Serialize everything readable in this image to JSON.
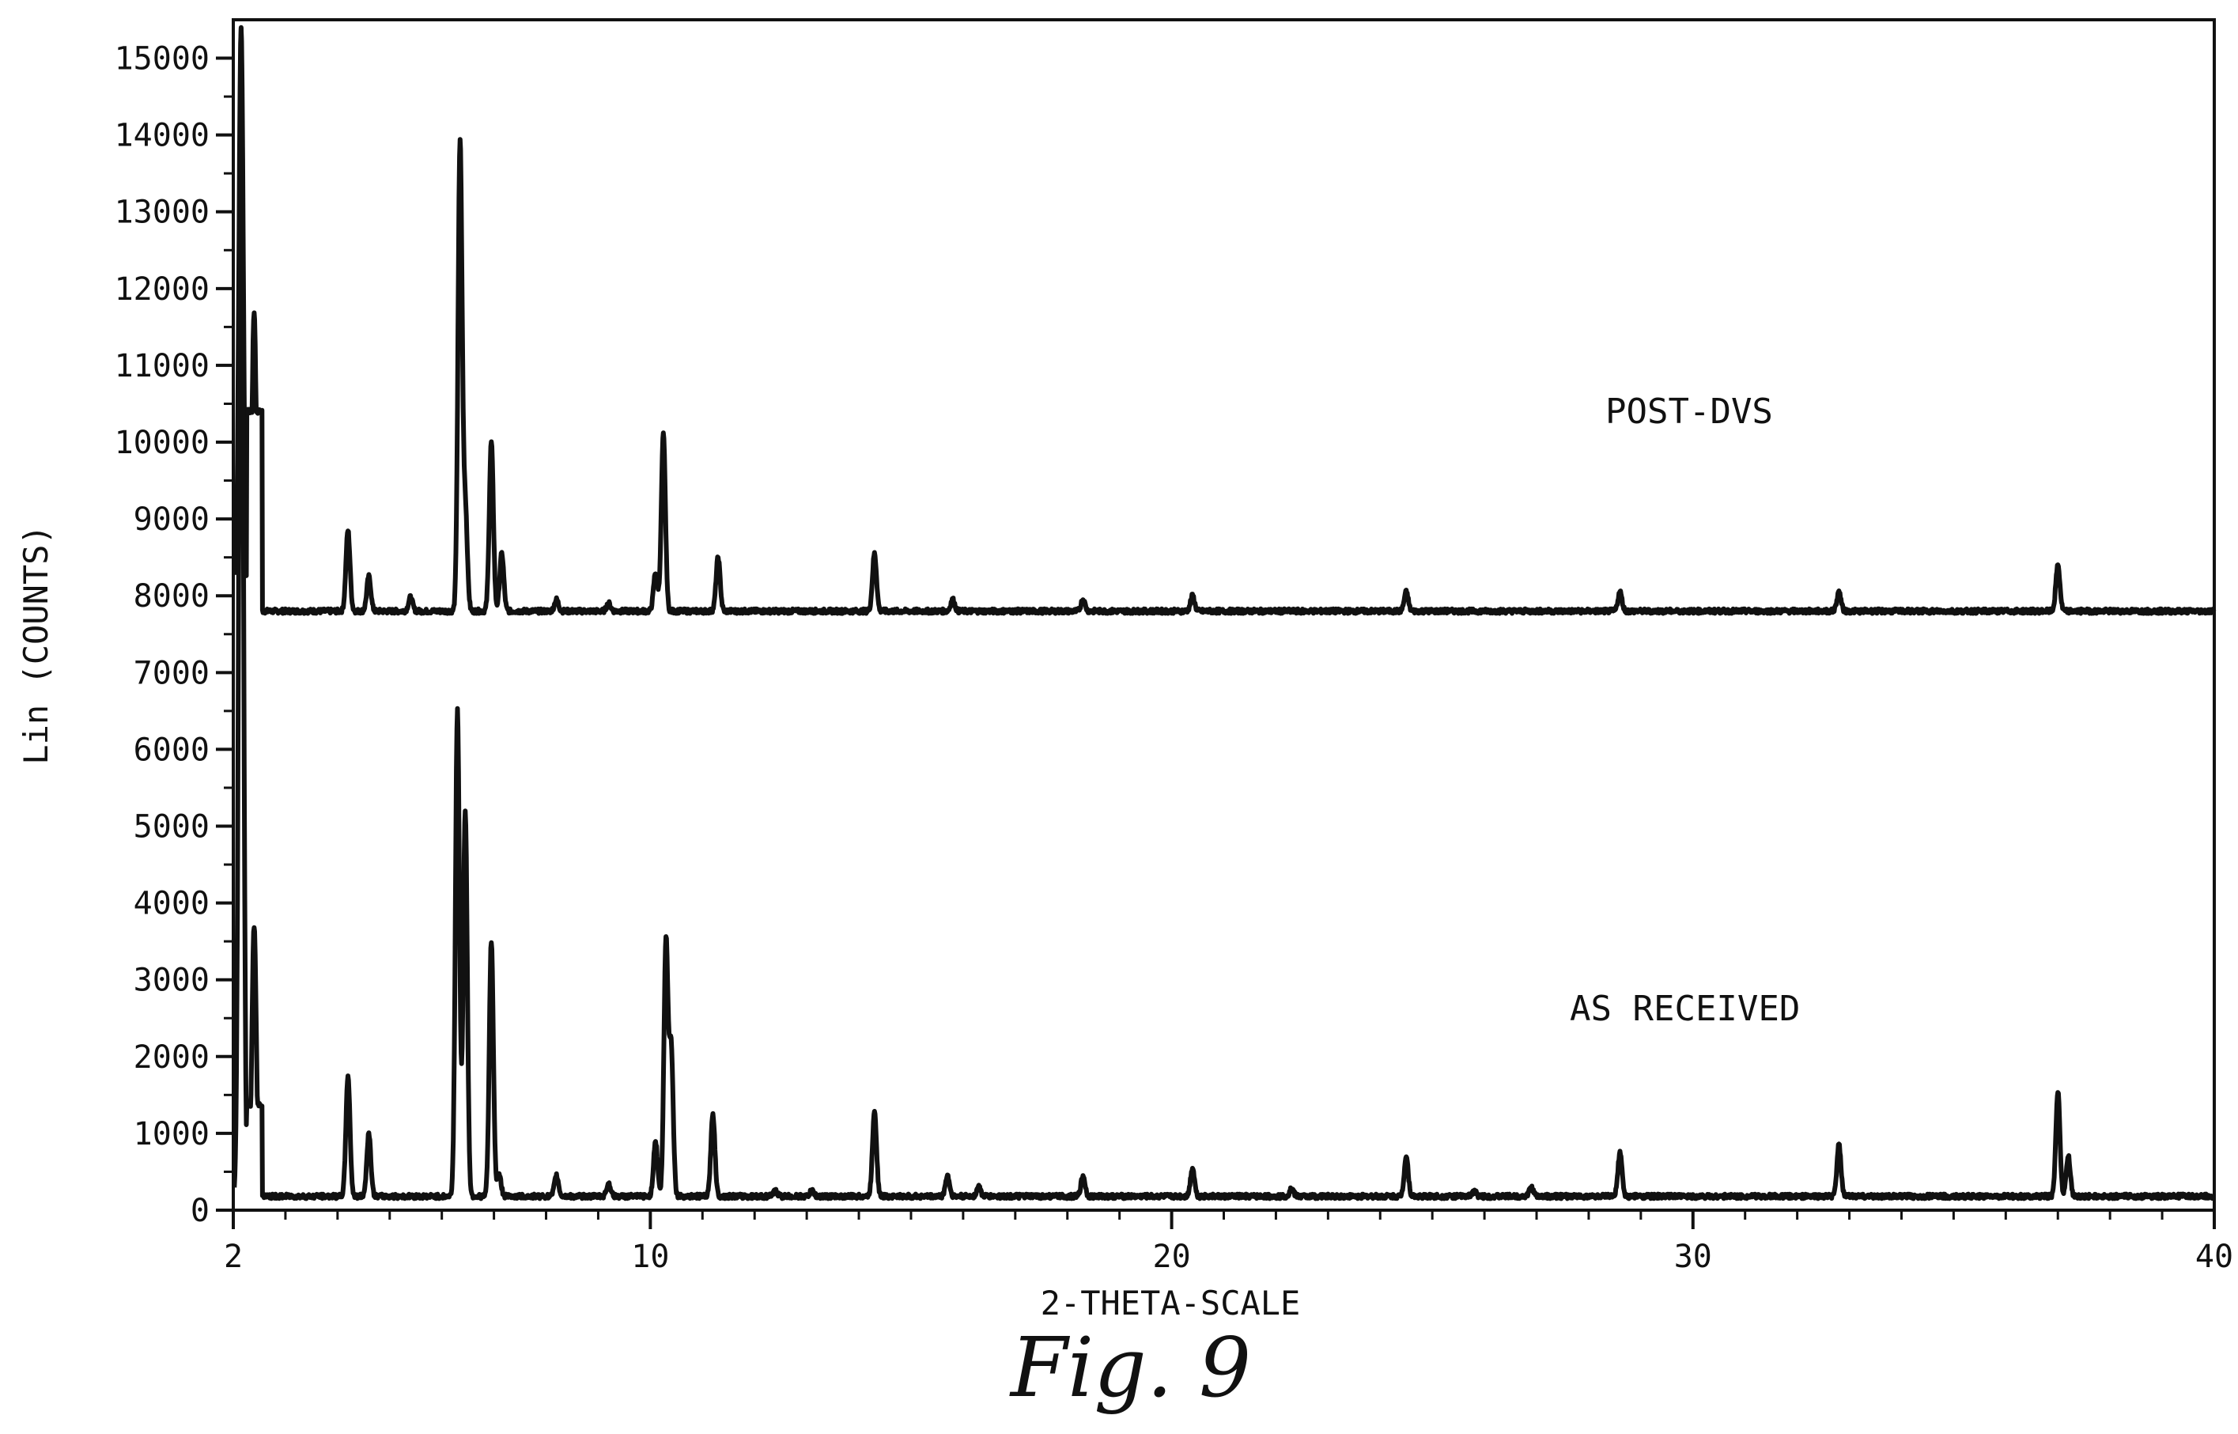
{
  "chart_data": {
    "type": "line",
    "title": "",
    "xlabel": "2-THETA-SCALE",
    "ylabel": "Lin (COUNTS)",
    "xlim": [
      2,
      40
    ],
    "ylim": [
      0,
      15500
    ],
    "x_ticks": [
      2,
      10,
      20,
      30,
      40
    ],
    "y_ticks": [
      0,
      1000,
      2000,
      3000,
      4000,
      5000,
      6000,
      7000,
      8000,
      9000,
      10000,
      11000,
      12000,
      13000,
      14000,
      15000
    ],
    "grid": false,
    "legend": "none",
    "series_color": "#111111",
    "series": [
      {
        "name": "POST-DVS",
        "baseline": 7800,
        "peaks": [
          {
            "x": 2.15,
            "y": 15400
          },
          {
            "x": 2.4,
            "y": 11700
          },
          {
            "x": 4.2,
            "y": 8850
          },
          {
            "x": 4.6,
            "y": 8250
          },
          {
            "x": 5.4,
            "y": 7980
          },
          {
            "x": 6.35,
            "y": 13900
          },
          {
            "x": 6.45,
            "y": 9150
          },
          {
            "x": 6.95,
            "y": 10000
          },
          {
            "x": 7.15,
            "y": 8550
          },
          {
            "x": 8.2,
            "y": 7950
          },
          {
            "x": 9.2,
            "y": 7900
          },
          {
            "x": 10.1,
            "y": 8300
          },
          {
            "x": 10.25,
            "y": 10100
          },
          {
            "x": 11.3,
            "y": 8500
          },
          {
            "x": 14.3,
            "y": 8550
          },
          {
            "x": 15.8,
            "y": 7950
          },
          {
            "x": 18.3,
            "y": 7950
          },
          {
            "x": 20.4,
            "y": 8000
          },
          {
            "x": 24.5,
            "y": 8050
          },
          {
            "x": 28.6,
            "y": 8050
          },
          {
            "x": 32.8,
            "y": 8050
          },
          {
            "x": 37.0,
            "y": 8400
          }
        ]
      },
      {
        "name": "AS RECEIVED",
        "baseline": 180,
        "peaks": [
          {
            "x": 2.15,
            "y": 15400
          },
          {
            "x": 2.4,
            "y": 3700
          },
          {
            "x": 4.2,
            "y": 1750
          },
          {
            "x": 4.6,
            "y": 1000
          },
          {
            "x": 6.3,
            "y": 6500
          },
          {
            "x": 6.45,
            "y": 5200
          },
          {
            "x": 6.95,
            "y": 3500
          },
          {
            "x": 7.1,
            "y": 450
          },
          {
            "x": 8.2,
            "y": 450
          },
          {
            "x": 9.2,
            "y": 350
          },
          {
            "x": 10.1,
            "y": 900
          },
          {
            "x": 10.3,
            "y": 3500
          },
          {
            "x": 10.4,
            "y": 2100
          },
          {
            "x": 11.2,
            "y": 1250
          },
          {
            "x": 12.4,
            "y": 250
          },
          {
            "x": 13.1,
            "y": 250
          },
          {
            "x": 14.3,
            "y": 1300
          },
          {
            "x": 15.7,
            "y": 450
          },
          {
            "x": 16.3,
            "y": 300
          },
          {
            "x": 18.3,
            "y": 450
          },
          {
            "x": 20.4,
            "y": 550
          },
          {
            "x": 22.3,
            "y": 280
          },
          {
            "x": 24.5,
            "y": 700
          },
          {
            "x": 25.8,
            "y": 250
          },
          {
            "x": 26.9,
            "y": 300
          },
          {
            "x": 28.6,
            "y": 750
          },
          {
            "x": 32.8,
            "y": 850
          },
          {
            "x": 37.0,
            "y": 1550
          },
          {
            "x": 37.2,
            "y": 700
          }
        ]
      }
    ]
  },
  "caption": "Fig. 9"
}
